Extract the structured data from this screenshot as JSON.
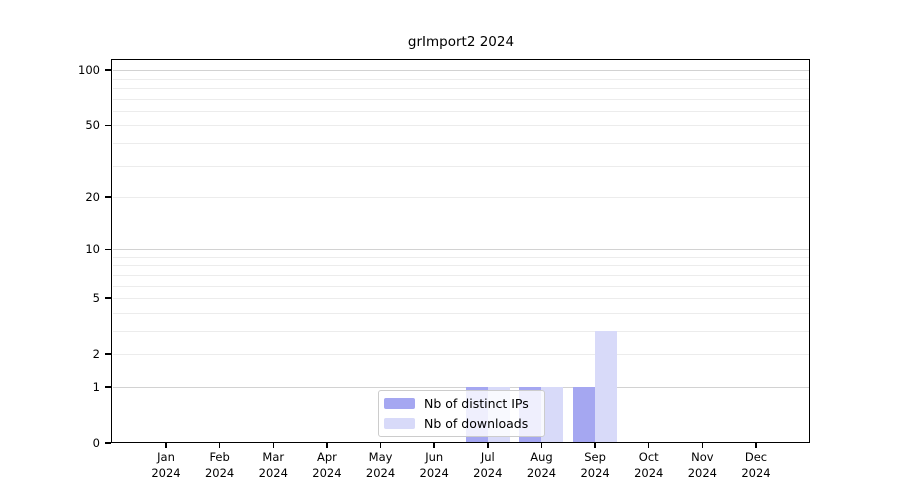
{
  "title": "grImport2 2024",
  "chart_data": {
    "type": "bar",
    "title": "grImport2 2024",
    "categories": [
      "Jan",
      "Feb",
      "Mar",
      "Apr",
      "May",
      "Jun",
      "Jul",
      "Aug",
      "Sep",
      "Oct",
      "Nov",
      "Dec"
    ],
    "year_label": "2024",
    "series": [
      {
        "name": "Nb of distinct IPs",
        "color": "#a5a7f1",
        "values": [
          0,
          0,
          0,
          0,
          0,
          0,
          1,
          1,
          1,
          0,
          0,
          0
        ]
      },
      {
        "name": "Nb of downloads",
        "color": "#d8daf9",
        "values": [
          0,
          0,
          0,
          0,
          0,
          0,
          1,
          1,
          3,
          0,
          0,
          0
        ]
      }
    ],
    "yscale": "log1p",
    "ylim": [
      0,
      114
    ],
    "ytick_labels": [
      100,
      50,
      20,
      10,
      5,
      2,
      1,
      0
    ],
    "major_gridlines": [
      1,
      10,
      100
    ],
    "minor_gridlines": [
      2,
      3,
      4,
      5,
      6,
      7,
      8,
      9,
      20,
      30,
      40,
      50,
      60,
      70,
      80,
      90
    ],
    "grid": true,
    "legend_position": "inside-bottom-center",
    "xlabel": "",
    "ylabel": ""
  },
  "colors": {
    "background": "#ffffff",
    "axis": "#000000",
    "major_grid": "#d2d2d2",
    "minor_grid": "#ececec",
    "legend_border": "#cccccc",
    "series_distinct_ips": "#a5a7f1",
    "series_downloads": "#d8daf9"
  }
}
